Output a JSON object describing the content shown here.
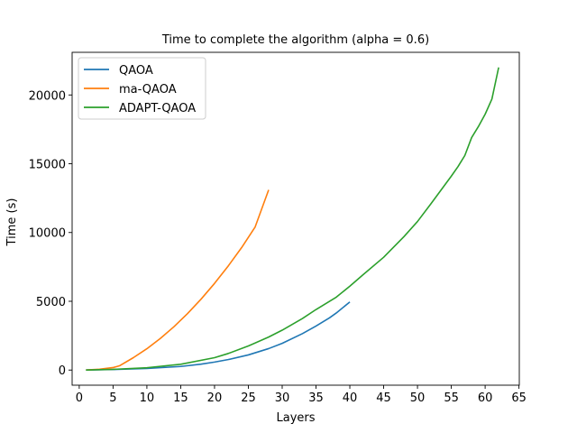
{
  "chart_data": {
    "type": "line",
    "title": "Time to complete the algorithm (alpha = 0.6)",
    "xlabel": "Layers",
    "ylabel": "Time (s)",
    "xlim": [
      -1.05,
      65.05
    ],
    "ylim": [
      -1100,
      23100
    ],
    "xticks": [
      0,
      5,
      10,
      15,
      20,
      25,
      30,
      35,
      40,
      45,
      50,
      55,
      60,
      65
    ],
    "yticks": [
      0,
      5000,
      10000,
      15000,
      20000
    ],
    "grid": false,
    "legend_position": "upper-left",
    "series": [
      {
        "name": "QAOA",
        "color": "#1f77b4",
        "points": [
          [
            1,
            5
          ],
          [
            5,
            40
          ],
          [
            10,
            120
          ],
          [
            15,
            260
          ],
          [
            18,
            430
          ],
          [
            20,
            580
          ],
          [
            22,
            760
          ],
          [
            25,
            1100
          ],
          [
            28,
            1560
          ],
          [
            30,
            1940
          ],
          [
            33,
            2650
          ],
          [
            35,
            3200
          ],
          [
            37,
            3800
          ],
          [
            38,
            4150
          ],
          [
            40,
            4950
          ]
        ]
      },
      {
        "name": "ma-QAOA",
        "color": "#ff7f0e",
        "points": [
          [
            1,
            5
          ],
          [
            3,
            60
          ],
          [
            5,
            180
          ],
          [
            6,
            320
          ],
          [
            8,
            900
          ],
          [
            10,
            1550
          ],
          [
            12,
            2300
          ],
          [
            14,
            3150
          ],
          [
            16,
            4100
          ],
          [
            18,
            5150
          ],
          [
            20,
            6300
          ],
          [
            22,
            7550
          ],
          [
            24,
            8900
          ],
          [
            26,
            10400
          ],
          [
            28,
            13100
          ]
        ]
      },
      {
        "name": "ADAPT-QAOA",
        "color": "#2ca02c",
        "points": [
          [
            1,
            5
          ],
          [
            5,
            50
          ],
          [
            10,
            170
          ],
          [
            15,
            420
          ],
          [
            20,
            900
          ],
          [
            22,
            1200
          ],
          [
            25,
            1750
          ],
          [
            28,
            2400
          ],
          [
            30,
            2900
          ],
          [
            33,
            3750
          ],
          [
            35,
            4400
          ],
          [
            38,
            5300
          ],
          [
            40,
            6100
          ],
          [
            42,
            6950
          ],
          [
            45,
            8200
          ],
          [
            48,
            9700
          ],
          [
            50,
            10800
          ],
          [
            52,
            12100
          ],
          [
            55,
            14100
          ],
          [
            56,
            14800
          ],
          [
            57,
            15600
          ],
          [
            58,
            16900
          ],
          [
            59,
            17700
          ],
          [
            60,
            18600
          ],
          [
            61,
            19700
          ],
          [
            62,
            22000
          ]
        ]
      }
    ]
  }
}
